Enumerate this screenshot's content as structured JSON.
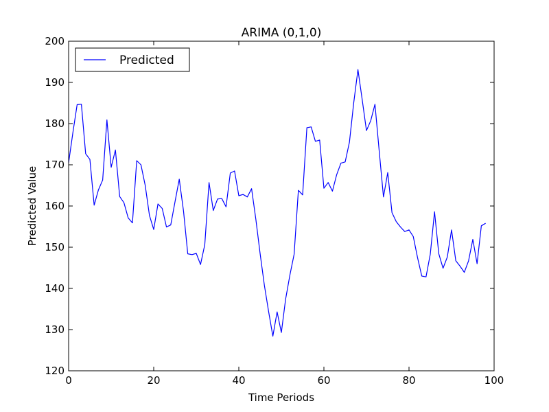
{
  "chart_data": {
    "type": "line",
    "title": "ARIMA (0,1,0)",
    "xlabel": "Time Periods",
    "ylabel": "Predicted Value",
    "xlim": [
      0,
      100
    ],
    "ylim": [
      120,
      200
    ],
    "xticks": [
      0,
      20,
      40,
      60,
      80,
      100
    ],
    "yticks": [
      120,
      130,
      140,
      150,
      160,
      170,
      180,
      190,
      200
    ],
    "grid": false,
    "legend_position": "top-left",
    "series": [
      {
        "name": "Predicted",
        "color": "#0000ff",
        "x": [
          0,
          1,
          2,
          3,
          4,
          5,
          6,
          7,
          8,
          9,
          10,
          11,
          12,
          13,
          14,
          15,
          16,
          17,
          18,
          19,
          20,
          21,
          22,
          23,
          24,
          25,
          26,
          27,
          28,
          29,
          30,
          31,
          32,
          33,
          34,
          35,
          36,
          37,
          38,
          39,
          40,
          41,
          42,
          43,
          44,
          45,
          46,
          47,
          48,
          49,
          50,
          51,
          52,
          53,
          54,
          55,
          56,
          57,
          58,
          59,
          60,
          61,
          62,
          63,
          64,
          65,
          66,
          67,
          68,
          69,
          70,
          71,
          72,
          73,
          74,
          75,
          76,
          77,
          78,
          79,
          80,
          81,
          82,
          83,
          84,
          85,
          86,
          87,
          88,
          89,
          90,
          91,
          92,
          93,
          94,
          95,
          96,
          97,
          98
        ],
        "y": [
          170.5,
          177.8,
          184.6,
          184.7,
          172.7,
          171.3,
          160.2,
          163.9,
          166.3,
          180.9,
          169.4,
          173.6,
          162.3,
          160.8,
          157.1,
          155.9,
          171.0,
          170.0,
          165.0,
          157.7,
          154.3,
          160.5,
          159.4,
          154.9,
          155.4,
          161.0,
          166.5,
          158.8,
          148.4,
          148.2,
          148.5,
          145.8,
          150.6,
          165.7,
          158.9,
          161.7,
          161.8,
          159.8,
          168.0,
          168.5,
          162.5,
          162.8,
          162.2,
          164.2,
          156.8,
          148.5,
          140.8,
          134.4,
          128.4,
          134.3,
          129.3,
          137.4,
          143.2,
          148.3,
          163.8,
          162.7,
          179.0,
          179.2,
          175.7,
          176.0,
          164.3,
          165.7,
          163.6,
          167.6,
          170.4,
          170.7,
          175.5,
          185.0,
          193.1,
          185.8,
          178.3,
          180.7,
          184.7,
          173.3,
          162.2,
          168.1,
          158.4,
          156.2,
          154.9,
          153.8,
          154.2,
          152.6,
          147.5,
          143.0,
          142.8,
          148.3,
          158.6,
          148.4,
          144.9,
          147.6,
          154.2,
          146.7,
          145.4,
          143.9,
          146.7,
          151.9,
          146.0,
          155.2,
          155.8
        ]
      }
    ]
  }
}
